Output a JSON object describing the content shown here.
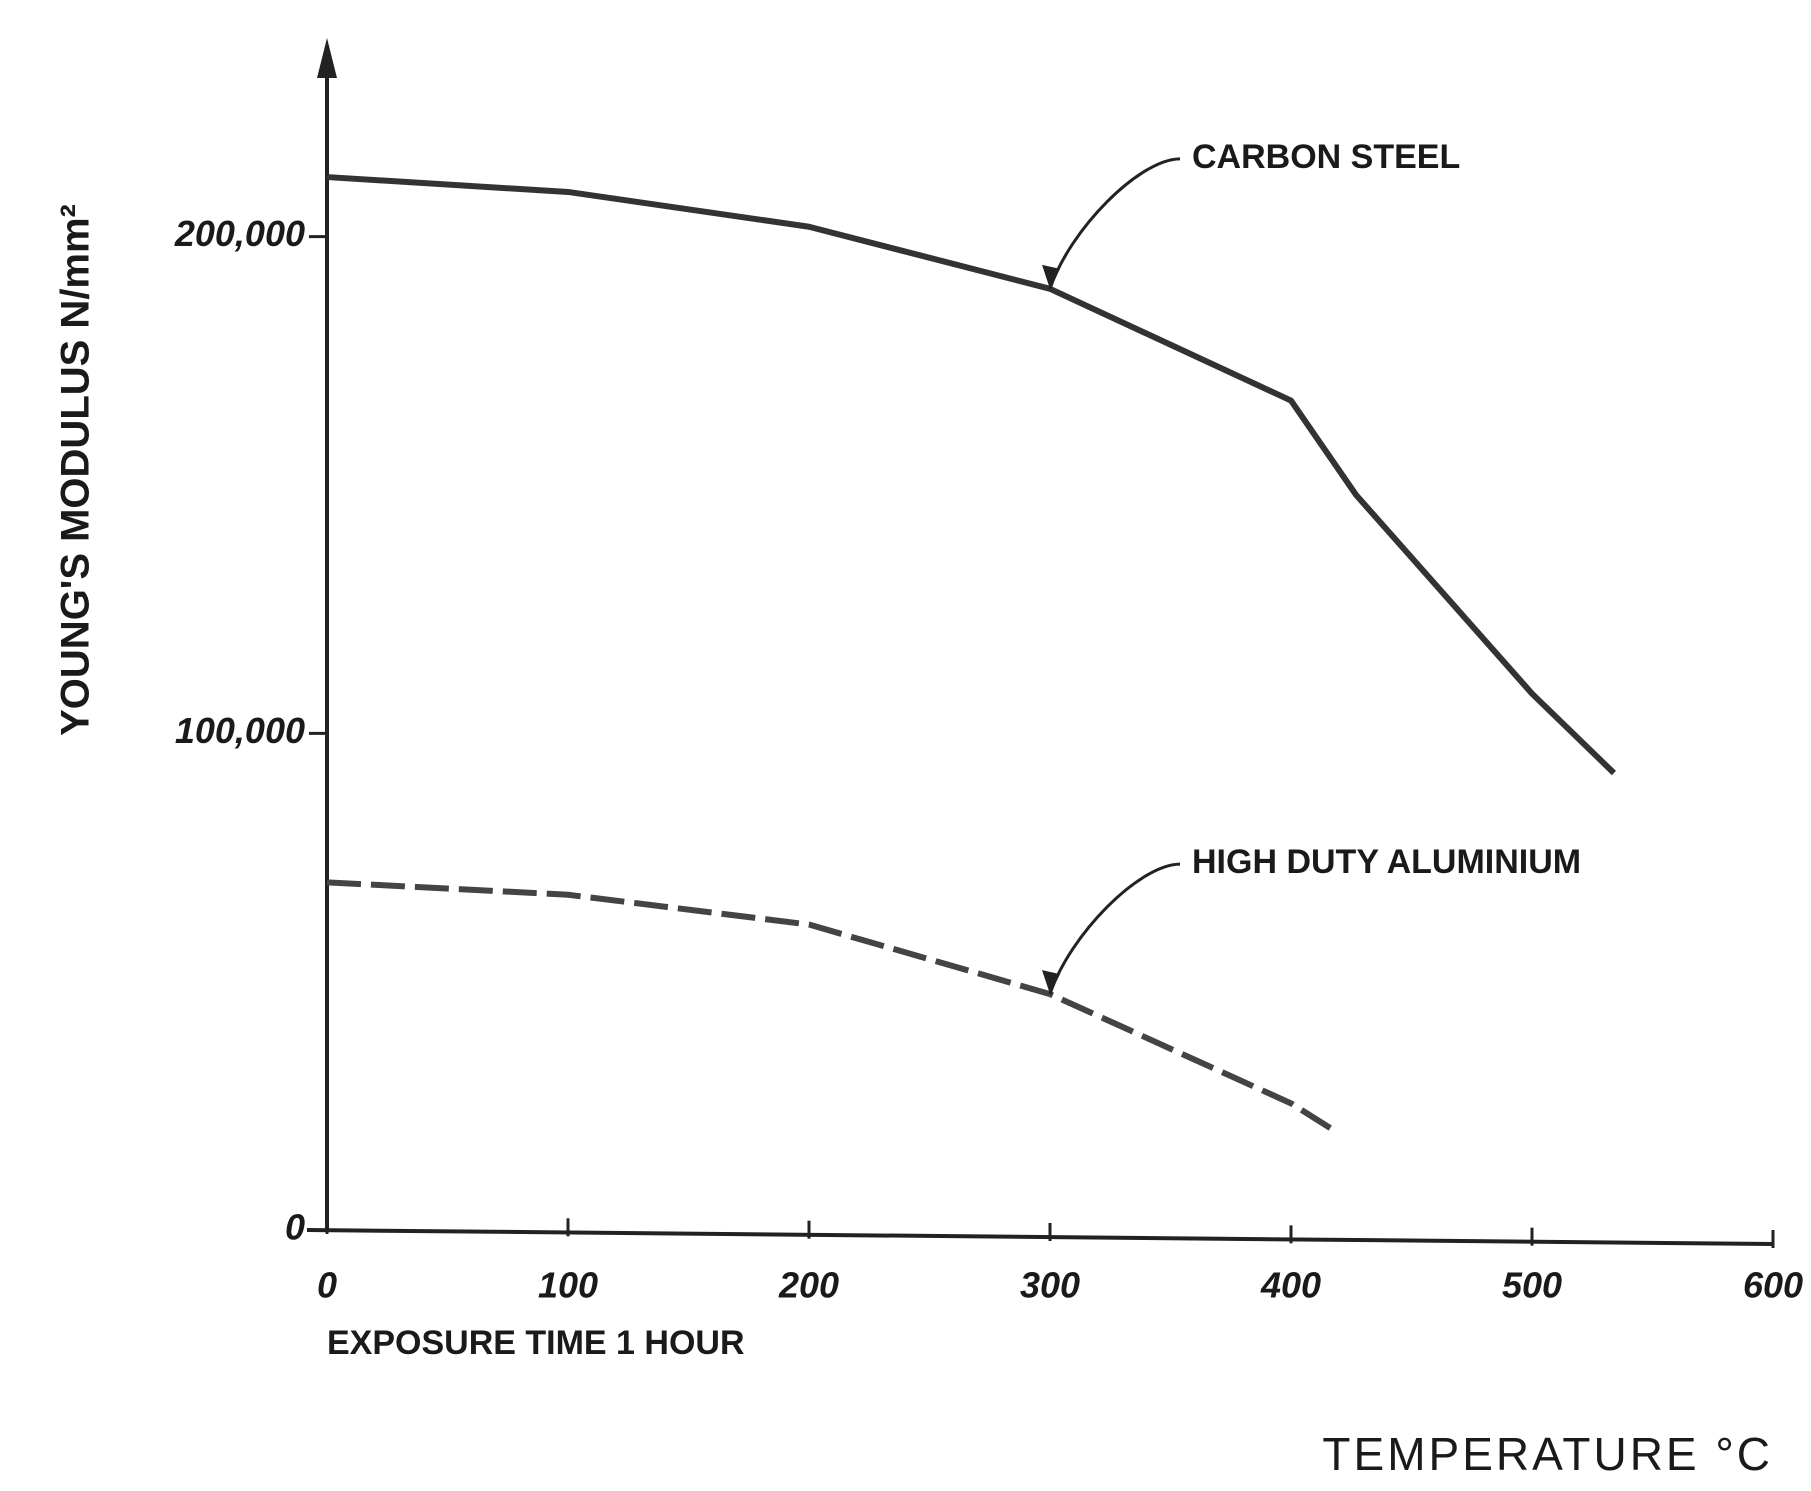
{
  "chart_data": {
    "type": "line",
    "y_label": "YOUNG'S MODULUS N/mm²",
    "x_label": "TEMPERATURE °C",
    "annotation": "EXPOSURE TIME 1 HOUR",
    "xlim": [
      0,
      600
    ],
    "xticks": [
      0,
      100,
      200,
      300,
      400,
      500,
      600
    ],
    "ylim": [
      0,
      240000
    ],
    "yticks": [
      0,
      {
        "value": 100000,
        "label": "100,000"
      },
      {
        "value": 200000,
        "label": "200,000"
      }
    ],
    "series": [
      {
        "name": "CARBON STEEL",
        "color": "#333333",
        "dash": false,
        "x": [
          0,
          100,
          200,
          300,
          400,
          427,
          500,
          534
        ],
        "values": [
          212000,
          209000,
          202000,
          189500,
          167000,
          148000,
          108000,
          92000
        ]
      },
      {
        "name": "HIGH DUTY ALUMINIUM",
        "color": "#444444",
        "dash": true,
        "x": [
          0,
          100,
          200,
          300,
          400,
          418
        ],
        "values": [
          70000,
          67500,
          61500,
          47500,
          25500,
          20000
        ]
      }
    ]
  }
}
